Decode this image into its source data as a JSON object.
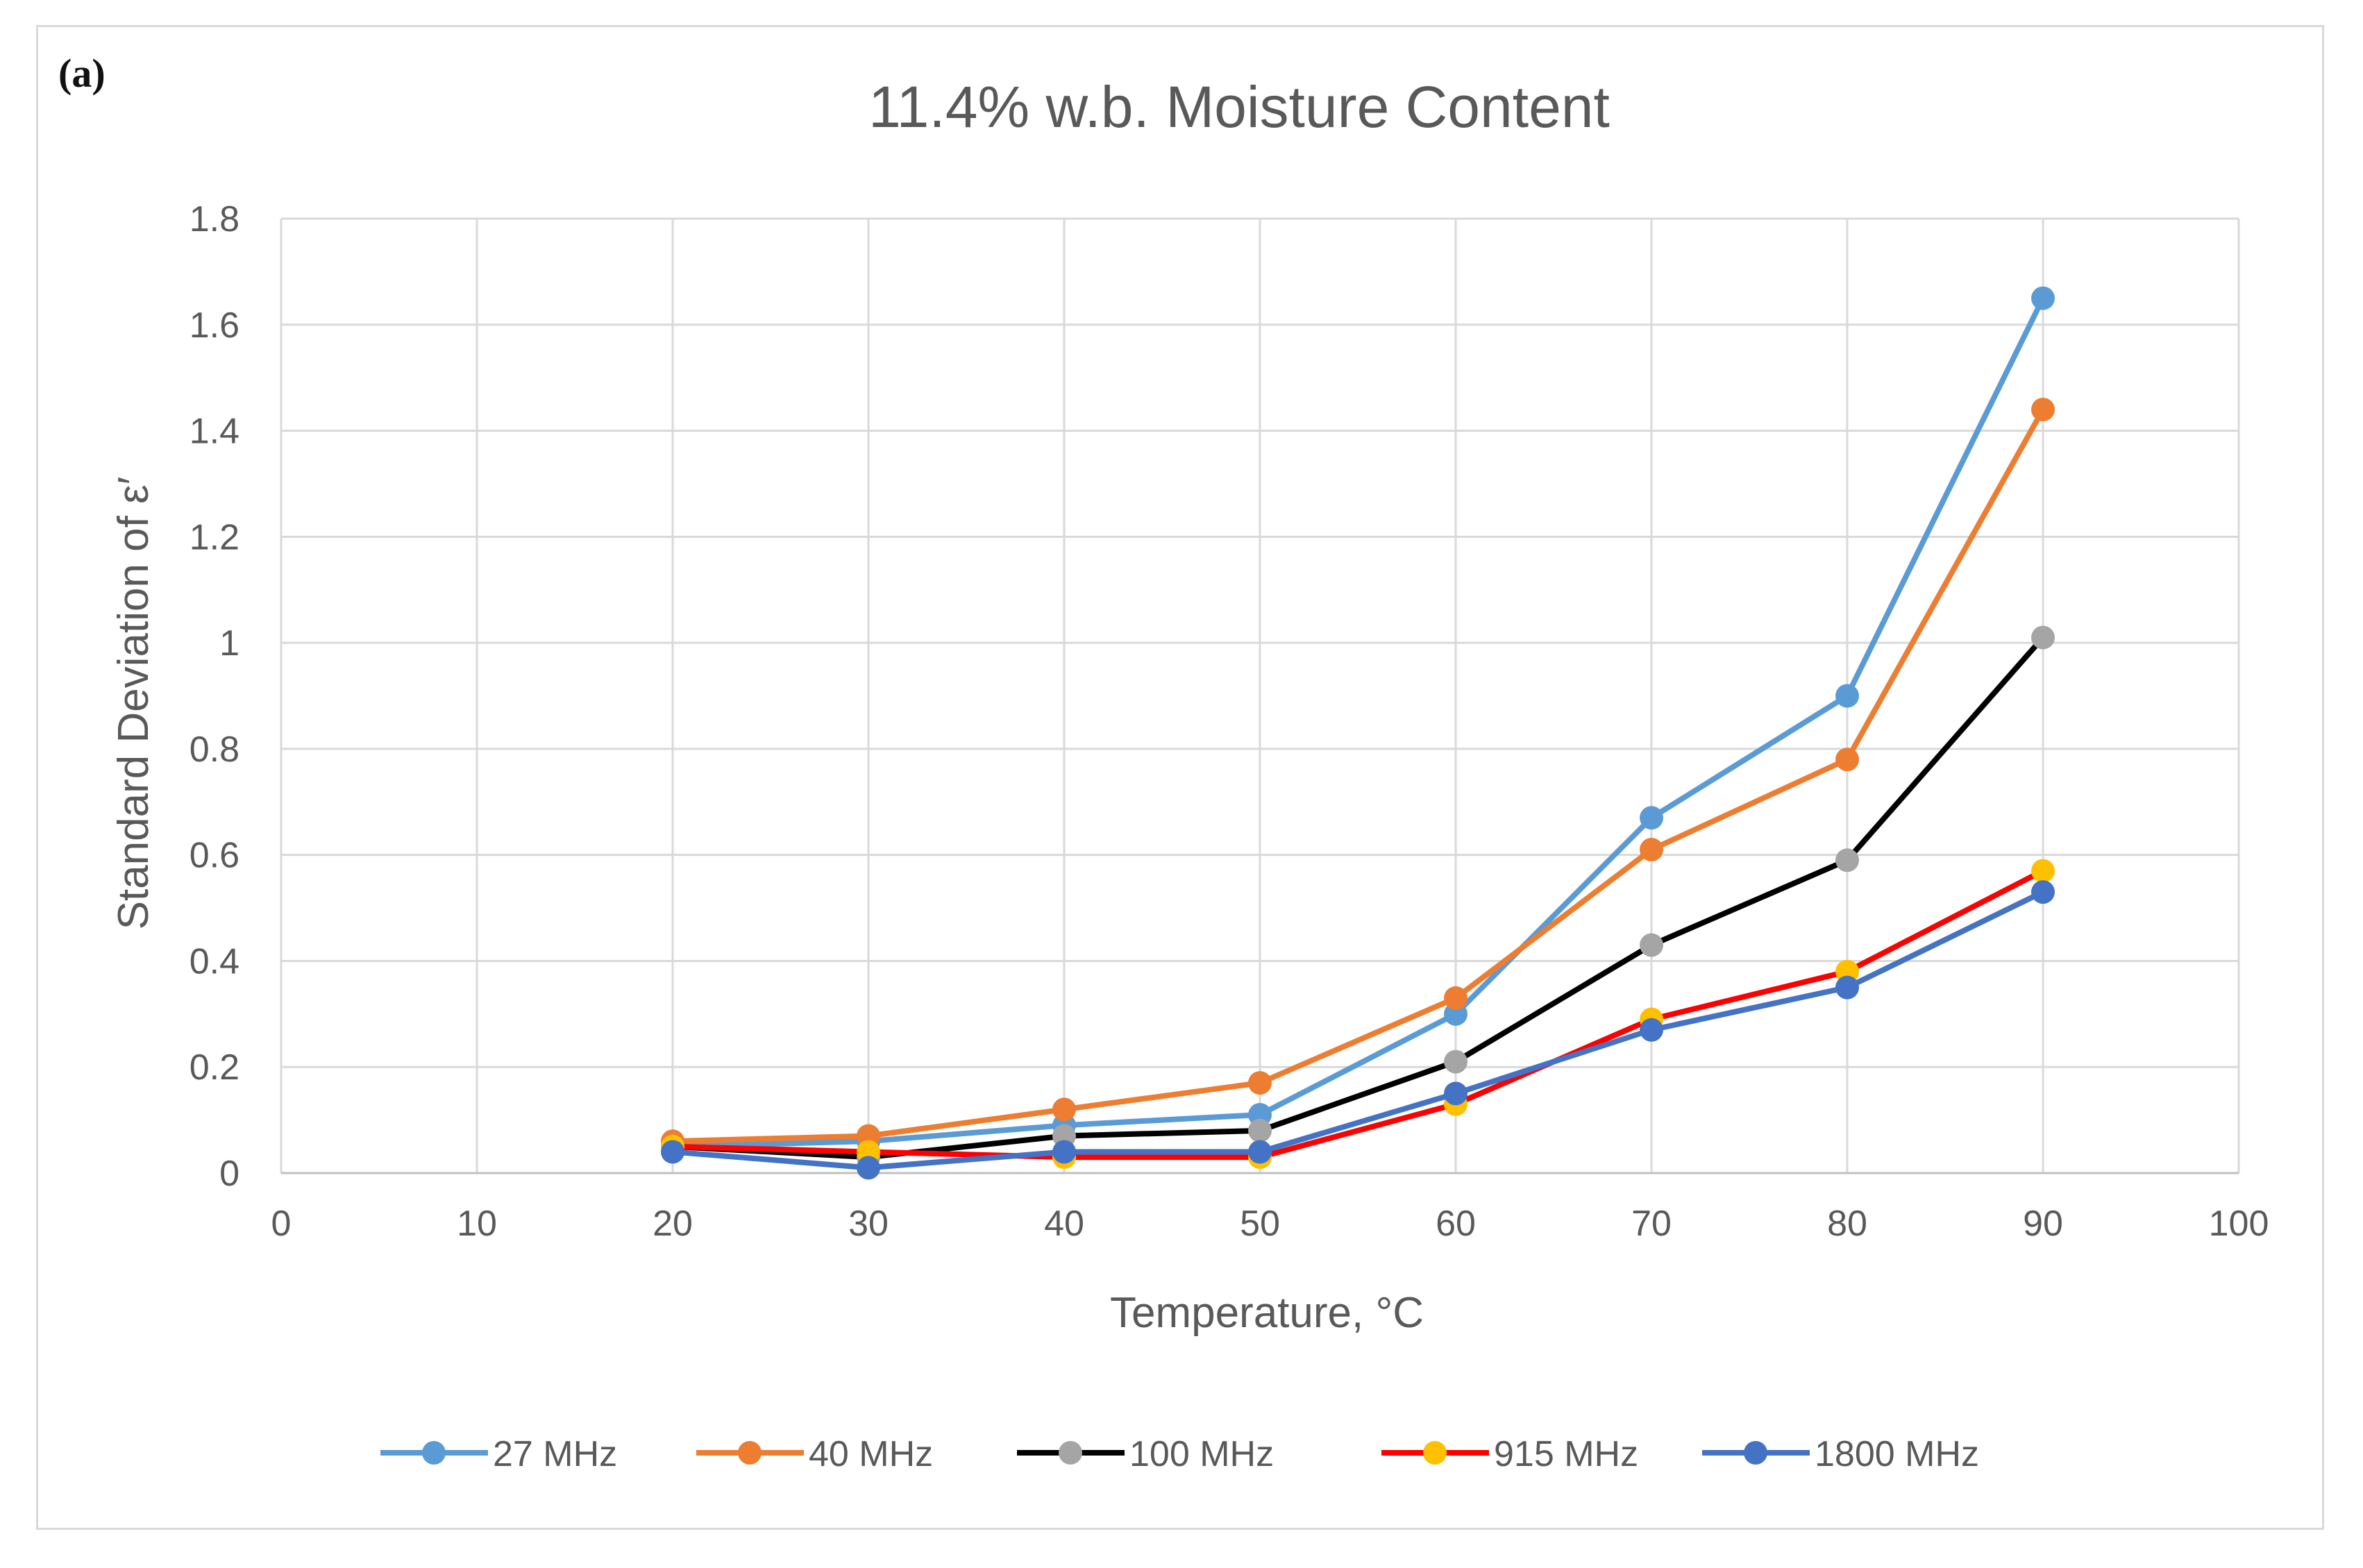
{
  "panel_label": "(a)",
  "chart_data": {
    "type": "line",
    "title": "11.4% w.b. Moisture Content",
    "xlabel": "Temperature, °C",
    "ylabel": "Standard Deviation of ε′",
    "xlim": [
      0,
      100
    ],
    "ylim": [
      0,
      1.8
    ],
    "x_ticks": [
      "0",
      "10",
      "20",
      "30",
      "40",
      "50",
      "60",
      "70",
      "80",
      "90",
      "100"
    ],
    "y_ticks": [
      "0",
      "0.2",
      "0.4",
      "0.6",
      "0.8",
      "1",
      "1.2",
      "1.4",
      "1.6",
      "1.8"
    ],
    "grid": true,
    "legend_position": "bottom",
    "x": [
      20,
      30,
      40,
      50,
      60,
      70,
      80,
      90
    ],
    "series": [
      {
        "name": "27 MHz",
        "line_color": "#5b9bd5",
        "marker_color": "#5b9bd5",
        "values": [
          0.05,
          0.06,
          0.09,
          0.11,
          0.3,
          0.67,
          0.9,
          1.65
        ]
      },
      {
        "name": "40 MHz",
        "line_color": "#ed7d31",
        "marker_color": "#ed7d31",
        "values": [
          0.06,
          0.07,
          0.12,
          0.17,
          0.33,
          0.61,
          0.78,
          1.44
        ]
      },
      {
        "name": "100 MHz",
        "line_color": "#000000",
        "marker_color": "#a5a5a5",
        "values": [
          0.05,
          0.03,
          0.07,
          0.08,
          0.21,
          0.43,
          0.59,
          1.01
        ]
      },
      {
        "name": "915 MHz",
        "line_color": "#ff0000",
        "marker_color": "#ffc000",
        "values": [
          0.05,
          0.04,
          0.03,
          0.03,
          0.13,
          0.29,
          0.38,
          0.57
        ]
      },
      {
        "name": "1800 MHz",
        "line_color": "#4472c4",
        "marker_color": "#4472c4",
        "values": [
          0.04,
          0.01,
          0.04,
          0.04,
          0.15,
          0.27,
          0.35,
          0.53
        ]
      }
    ]
  }
}
